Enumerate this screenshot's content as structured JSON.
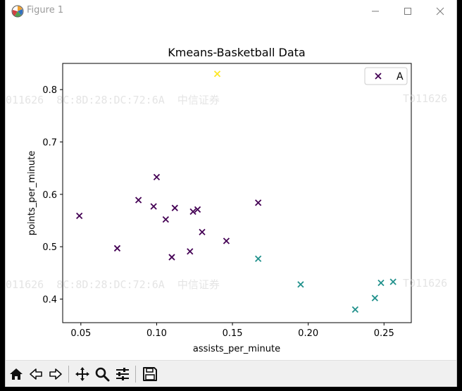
{
  "window": {
    "title": "Figure 1",
    "controls": {
      "minimize": "—",
      "maximize": "☐",
      "close": "✕"
    }
  },
  "watermark": {
    "left_text": "011626  8C:8D:28:DC:72:6A  中信证券",
    "right_text": "T011626"
  },
  "chart_data": {
    "type": "scatter",
    "title": "Kmeans-Basketball Data",
    "xlabel": "assists_per_minute",
    "ylabel": "points_per_minute",
    "xlim": [
      0.038,
      0.268
    ],
    "ylim": [
      0.355,
      0.85
    ],
    "xticks": [
      0.05,
      0.1,
      0.15,
      0.2,
      0.25
    ],
    "xtick_labels": [
      "0.05",
      "0.10",
      "0.15",
      "0.20",
      "0.25"
    ],
    "yticks": [
      0.4,
      0.5,
      0.6,
      0.7,
      0.8
    ],
    "ytick_labels": [
      "0.4",
      "0.5",
      "0.6",
      "0.7",
      "0.8"
    ],
    "grid": false,
    "legend": {
      "placement": "top-right",
      "entries": [
        {
          "label": "A",
          "color": "#440154"
        }
      ]
    },
    "marker": "x",
    "series": [
      {
        "color": "#440154",
        "points": [
          [
            0.049,
            0.559
          ],
          [
            0.074,
            0.497
          ],
          [
            0.088,
            0.589
          ],
          [
            0.098,
            0.577
          ],
          [
            0.1,
            0.633
          ],
          [
            0.106,
            0.552
          ],
          [
            0.11,
            0.48
          ],
          [
            0.112,
            0.574
          ],
          [
            0.122,
            0.491
          ],
          [
            0.124,
            0.567
          ],
          [
            0.127,
            0.571
          ],
          [
            0.13,
            0.528
          ],
          [
            0.146,
            0.511
          ],
          [
            0.167,
            0.584
          ]
        ]
      },
      {
        "color": "#21918c",
        "points": [
          [
            0.167,
            0.477
          ],
          [
            0.195,
            0.428
          ],
          [
            0.231,
            0.38
          ],
          [
            0.244,
            0.402
          ],
          [
            0.248,
            0.431
          ],
          [
            0.256,
            0.433
          ]
        ]
      },
      {
        "color": "#fde725",
        "points": [
          [
            0.14,
            0.83
          ]
        ]
      }
    ]
  }
}
